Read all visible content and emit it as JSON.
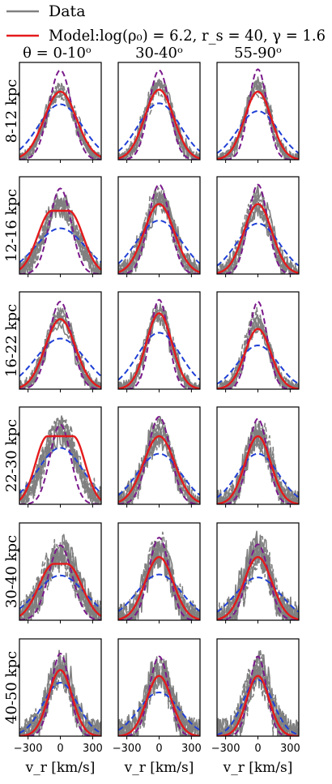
{
  "legend": {
    "items": [
      {
        "label": "Data",
        "color": "#808080"
      },
      {
        "label": "Model:log(ρ₀) = 6.2, r_s = 40, γ = 1.6",
        "color": "#e41a1c"
      }
    ]
  },
  "chart_data": {
    "type": "line",
    "layout": "grid",
    "rows": 6,
    "cols": 3,
    "col_labels": [
      "θ = 0-10ᵒ",
      "30-40ᵒ",
      "55-90ᵒ"
    ],
    "row_labels": [
      "8-12 kpc",
      "12-16 kpc",
      "16-22 kpc",
      "22-30 kpc",
      "30-40 kpc",
      "40-50 kpc"
    ],
    "xlabel": "v_r [km/s]",
    "xlim": [
      -380,
      380
    ],
    "xticks": [
      -300,
      0,
      300
    ],
    "xtick_labels": [
      "−300",
      "0",
      "300"
    ],
    "ylim": [
      0,
      1
    ],
    "grid": false,
    "series_styles": {
      "data": {
        "name": "Data",
        "color": "#808080"
      },
      "model": {
        "name": "Model",
        "color": "#e41a1c"
      },
      "upper": {
        "color": "#7b1a8c"
      },
      "lower": {
        "color": "#1f3fd6"
      }
    },
    "panels": [
      {
        "row": 0,
        "col": 0,
        "model_amp": 0.7,
        "model_sigma": 150,
        "model_flat": 0,
        "upper_amp": 0.92,
        "upper_sigma": 105,
        "lower_amp": 0.57,
        "lower_sigma": 205,
        "data_amp": 0.72,
        "data_sigma": 135,
        "noise": 0.05
      },
      {
        "row": 0,
        "col": 1,
        "model_amp": 0.72,
        "model_sigma": 135,
        "model_flat": 0,
        "upper_amp": 0.92,
        "upper_sigma": 95,
        "lower_amp": 0.58,
        "lower_sigma": 195,
        "data_amp": 0.74,
        "data_sigma": 125,
        "noise": 0.06
      },
      {
        "row": 0,
        "col": 2,
        "model_amp": 0.7,
        "model_sigma": 125,
        "model_flat": 0,
        "upper_amp": 0.93,
        "upper_sigma": 85,
        "lower_amp": 0.5,
        "lower_sigma": 190,
        "data_amp": 0.72,
        "data_sigma": 115,
        "noise": 0.06
      },
      {
        "row": 1,
        "col": 0,
        "model_amp": 0.65,
        "model_sigma": 130,
        "model_flat": 80,
        "upper_amp": 0.88,
        "upper_sigma": 100,
        "lower_amp": 0.47,
        "lower_sigma": 230,
        "data_amp": 0.7,
        "data_sigma": 150,
        "noise": 0.1
      },
      {
        "row": 1,
        "col": 1,
        "model_amp": 0.72,
        "model_sigma": 140,
        "model_flat": 0,
        "upper_amp": 0.92,
        "upper_sigma": 100,
        "lower_amp": 0.55,
        "lower_sigma": 210,
        "data_amp": 0.76,
        "data_sigma": 130,
        "noise": 0.1
      },
      {
        "row": 1,
        "col": 2,
        "model_amp": 0.72,
        "model_sigma": 130,
        "model_flat": 0,
        "upper_amp": 0.92,
        "upper_sigma": 90,
        "lower_amp": 0.52,
        "lower_sigma": 200,
        "data_amp": 0.74,
        "data_sigma": 120,
        "noise": 0.1
      },
      {
        "row": 2,
        "col": 0,
        "model_amp": 0.72,
        "model_sigma": 140,
        "model_flat": 0,
        "upper_amp": 0.9,
        "upper_sigma": 105,
        "lower_amp": 0.52,
        "lower_sigma": 230,
        "data_amp": 0.74,
        "data_sigma": 130,
        "noise": 0.07
      },
      {
        "row": 2,
        "col": 1,
        "model_amp": 0.78,
        "model_sigma": 120,
        "model_flat": 0,
        "upper_amp": 0.92,
        "upper_sigma": 85,
        "lower_amp": 0.58,
        "lower_sigma": 200,
        "data_amp": 0.78,
        "data_sigma": 115,
        "noise": 0.07
      },
      {
        "row": 2,
        "col": 2,
        "model_amp": 0.62,
        "model_sigma": 120,
        "model_flat": 0,
        "upper_amp": 0.9,
        "upper_sigma": 85,
        "lower_amp": 0.45,
        "lower_sigma": 185,
        "data_amp": 0.7,
        "data_sigma": 110,
        "noise": 0.08
      },
      {
        "row": 3,
        "col": 0,
        "model_amp": 0.7,
        "model_sigma": 110,
        "model_flat": 120,
        "upper_amp": 0.82,
        "upper_sigma": 95,
        "lower_amp": 0.58,
        "lower_sigma": 210,
        "data_amp": 0.76,
        "data_sigma": 150,
        "noise": 0.12
      },
      {
        "row": 3,
        "col": 1,
        "model_amp": 0.7,
        "model_sigma": 145,
        "model_flat": 0,
        "upper_amp": 0.9,
        "upper_sigma": 105,
        "lower_amp": 0.52,
        "lower_sigma": 205,
        "data_amp": 0.74,
        "data_sigma": 130,
        "noise": 0.12
      },
      {
        "row": 3,
        "col": 2,
        "model_amp": 0.7,
        "model_sigma": 120,
        "model_flat": 0,
        "upper_amp": 0.88,
        "upper_sigma": 90,
        "lower_amp": 0.52,
        "lower_sigma": 190,
        "data_amp": 0.74,
        "data_sigma": 115,
        "noise": 0.14
      },
      {
        "row": 4,
        "col": 0,
        "model_amp": 0.58,
        "model_sigma": 140,
        "model_flat": 60,
        "upper_amp": 0.77,
        "upper_sigma": 110,
        "lower_amp": 0.46,
        "lower_sigma": 230,
        "data_amp": 0.7,
        "data_sigma": 150,
        "noise": 0.16
      },
      {
        "row": 4,
        "col": 1,
        "model_amp": 0.65,
        "model_sigma": 130,
        "model_flat": 0,
        "upper_amp": 0.85,
        "upper_sigma": 95,
        "lower_amp": 0.47,
        "lower_sigma": 210,
        "data_amp": 0.72,
        "data_sigma": 120,
        "noise": 0.16
      },
      {
        "row": 4,
        "col": 2,
        "model_amp": 0.65,
        "model_sigma": 130,
        "model_flat": 0,
        "upper_amp": 0.78,
        "upper_sigma": 100,
        "lower_amp": 0.44,
        "lower_sigma": 210,
        "data_amp": 0.72,
        "data_sigma": 120,
        "noise": 0.18
      },
      {
        "row": 5,
        "col": 0,
        "model_amp": 0.68,
        "model_sigma": 110,
        "model_flat": 0,
        "upper_amp": 0.85,
        "upper_sigma": 85,
        "lower_amp": 0.55,
        "lower_sigma": 160,
        "data_amp": 0.7,
        "data_sigma": 115,
        "noise": 0.16
      },
      {
        "row": 5,
        "col": 1,
        "model_amp": 0.62,
        "model_sigma": 115,
        "model_flat": 0,
        "upper_amp": 0.82,
        "upper_sigma": 90,
        "lower_amp": 0.45,
        "lower_sigma": 190,
        "data_amp": 0.7,
        "data_sigma": 115,
        "noise": 0.18
      },
      {
        "row": 5,
        "col": 2,
        "model_amp": 0.62,
        "model_sigma": 105,
        "model_flat": 0,
        "upper_amp": 0.82,
        "upper_sigma": 80,
        "lower_amp": 0.58,
        "lower_sigma": 140,
        "data_amp": 0.7,
        "data_sigma": 105,
        "noise": 0.18
      }
    ]
  }
}
